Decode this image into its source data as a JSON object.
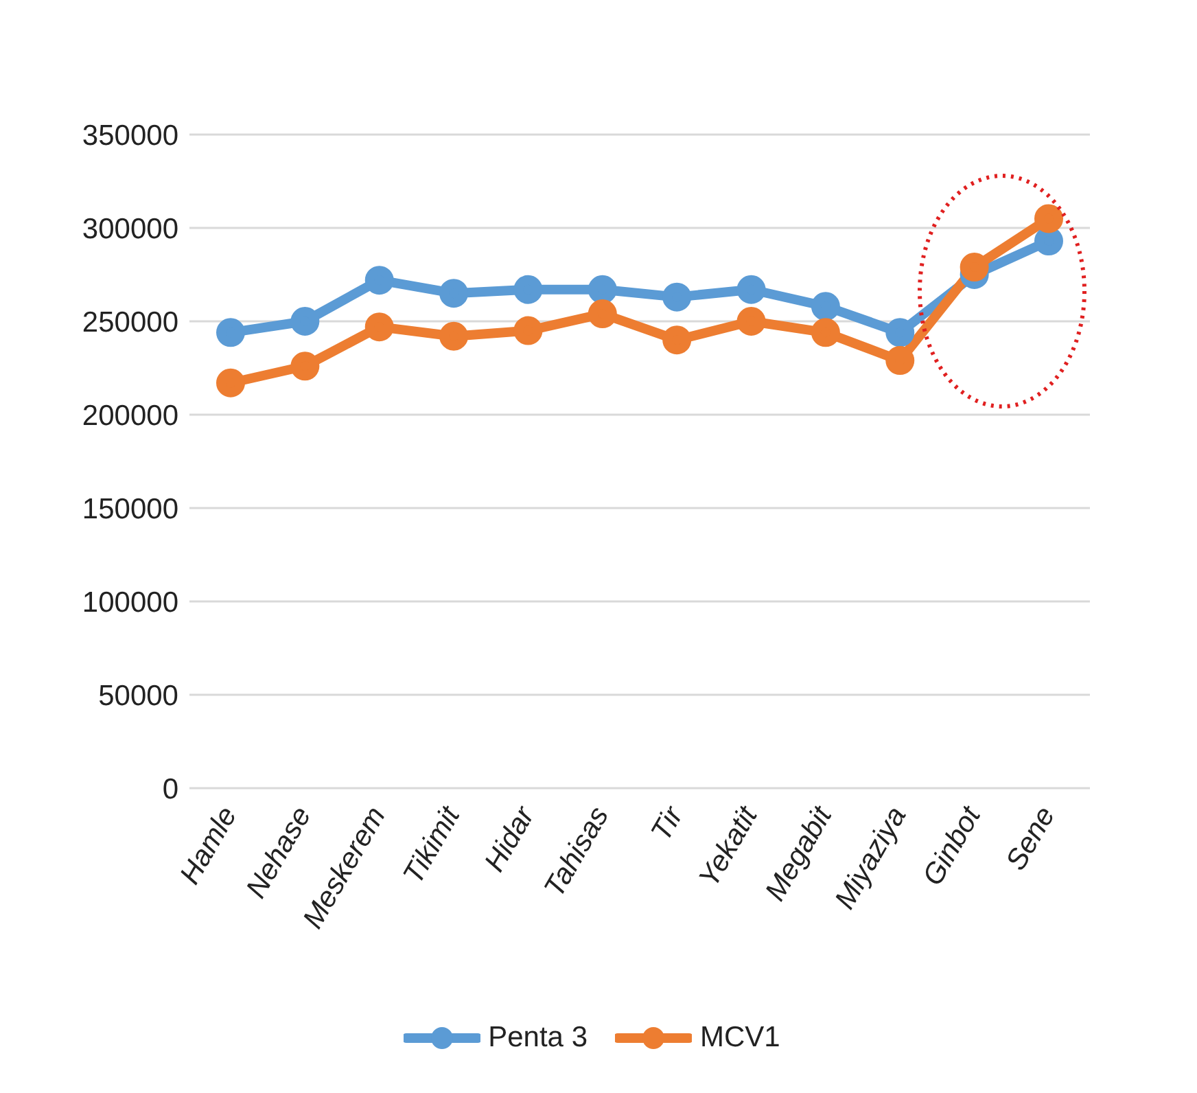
{
  "chart_data": {
    "type": "line",
    "categories": [
      "Hamle",
      "Nehase",
      "Meskerem",
      "Tikimit",
      "Hidar",
      "Tahisas",
      "Tir",
      "Yekatit",
      "Megabit",
      "Miyaziya",
      "Ginbot",
      "Sene"
    ],
    "series": [
      {
        "name": "Penta 3",
        "color": "#5b9bd5",
        "values": [
          244000,
          250000,
          272000,
          265000,
          267000,
          267000,
          263000,
          267000,
          258000,
          244000,
          275000,
          293000
        ]
      },
      {
        "name": "MCV1",
        "color": "#ed7d31",
        "values": [
          217000,
          226000,
          247000,
          242000,
          245000,
          254000,
          240000,
          250000,
          244000,
          229000,
          279000,
          305000
        ]
      }
    ],
    "ylim": [
      0,
      350000
    ],
    "yticks": [
      0,
      50000,
      100000,
      150000,
      200000,
      250000,
      300000,
      350000
    ],
    "grid": "y",
    "legend": "bottom",
    "marker": "circle",
    "line_style": "solid"
  }
}
